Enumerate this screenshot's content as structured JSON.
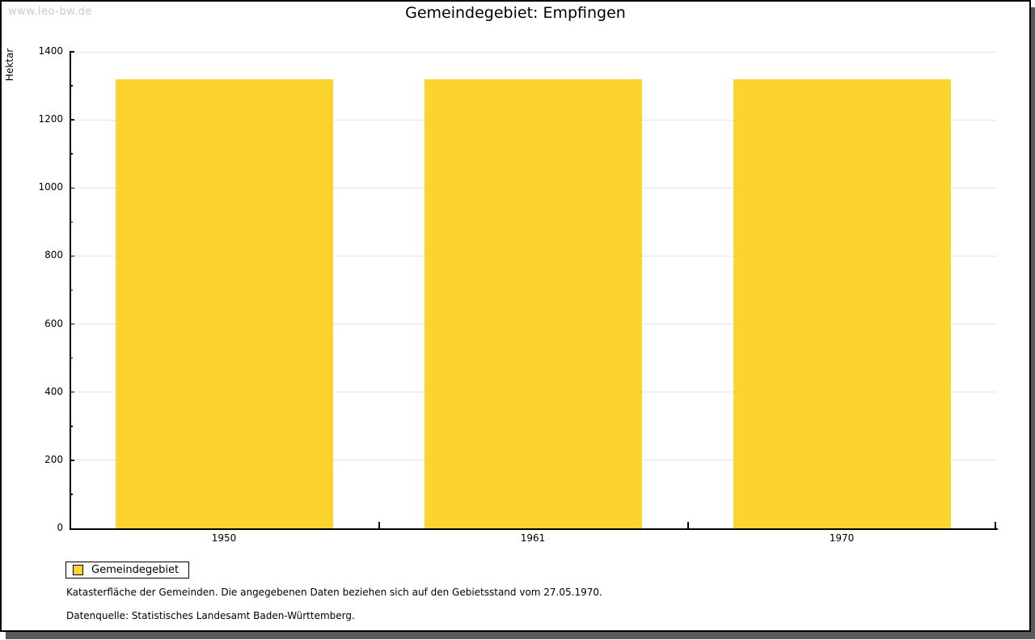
{
  "watermark": "www.leo-bw.de",
  "header": {
    "title": "Gemeindegebiet: Empfingen"
  },
  "chart_data": {
    "type": "bar",
    "title": "Gemeindegebiet: Empfingen",
    "categories": [
      "1950",
      "1961",
      "1970"
    ],
    "series": [
      {
        "name": "Gemeindegebiet",
        "color": "#fcd42d",
        "values": [
          1320,
          1320,
          1320
        ]
      }
    ],
    "xlabel": "",
    "ylabel": "Hektar",
    "ylim": [
      0,
      1400
    ],
    "ytick_major": 200,
    "ytick_minor": 100,
    "grid": "horizontal-major",
    "legend_position": "bottom-left"
  },
  "legend": {
    "items": [
      {
        "label": "Gemeindegebiet",
        "color": "#fcd42d"
      }
    ]
  },
  "footnotes": {
    "line1": "Katasterfläche der Gemeinden. Die angegebenen Daten beziehen sich auf den Gebietsstand vom 27.05.1970.",
    "line2": "Datenquelle: Statistisches Landesamt Baden-Württemberg."
  },
  "colors": {
    "bar": "#fcd42d",
    "grid": "#e2e2e2",
    "axis": "#000000",
    "shadow": "#5a5a5a",
    "watermark": "#c9c9c9",
    "background": "#ffffff"
  }
}
